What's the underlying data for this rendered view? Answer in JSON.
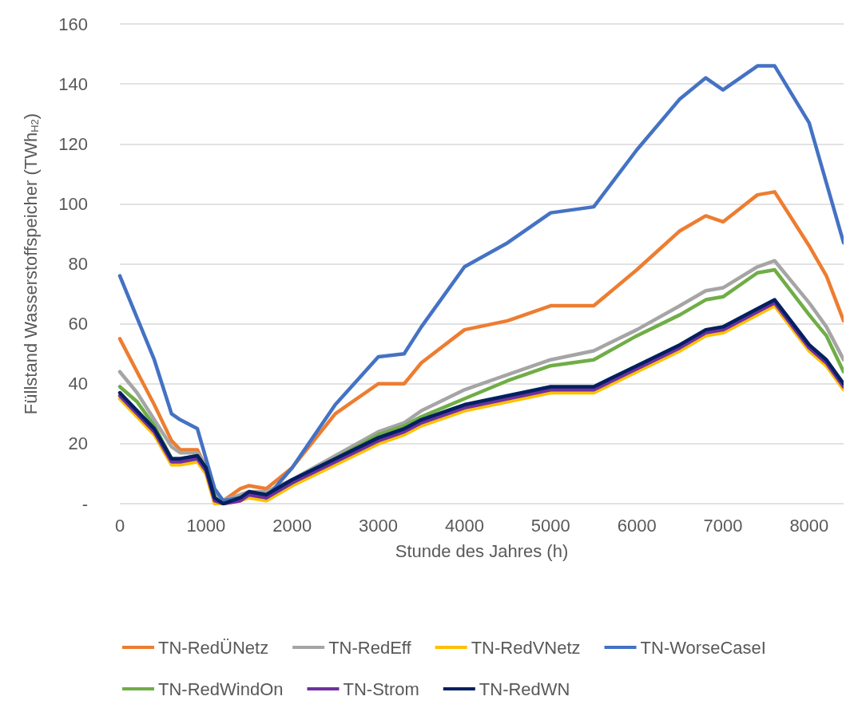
{
  "chart_data": {
    "type": "line",
    "xlabel": "Stunde des Jahres (h)",
    "ylabel": "Füllstand Wasserstoffspeicher (TWh$_{H2}$)",
    "x": [
      0,
      200,
      400,
      600,
      700,
      900,
      1000,
      1100,
      1200,
      1400,
      1500,
      1700,
      2000,
      2500,
      3000,
      3300,
      3500,
      4000,
      4500,
      5000,
      5500,
      6000,
      6500,
      6800,
      7000,
      7400,
      7600,
      8000,
      8200,
      8400
    ],
    "xlim": [
      0,
      8400
    ],
    "xticks": [
      0,
      1000,
      2000,
      3000,
      4000,
      5000,
      6000,
      7000,
      8000
    ],
    "ylim": [
      0,
      160
    ],
    "yticks": [
      {
        "value": 0,
        "label": "-"
      },
      20,
      40,
      60,
      80,
      100,
      120,
      140,
      160
    ],
    "grid": "y",
    "legend": "bottom",
    "marker": "none",
    "line_style": "solid",
    "series": [
      {
        "name": "TN-RedÜNetz",
        "color": "#ed7d31",
        "values": [
          55,
          44,
          33,
          21,
          18,
          18,
          12,
          4,
          1,
          5,
          6,
          5,
          12,
          30,
          40,
          40,
          47,
          58,
          61,
          66,
          66,
          78,
          91,
          96,
          94,
          103,
          104,
          86,
          76,
          61
        ]
      },
      {
        "name": "TN-RedEff",
        "color": "#a5a5a5",
        "values": [
          44,
          37,
          28,
          19,
          17,
          17,
          13,
          4,
          1,
          3,
          4,
          4,
          8,
          16,
          24,
          27,
          31,
          38,
          43,
          48,
          51,
          58,
          66,
          71,
          72,
          79,
          81,
          67,
          59,
          48
        ]
      },
      {
        "name": "TN-RedVNetz",
        "color": "#ffc000",
        "values": [
          35,
          29,
          23,
          13,
          13,
          14,
          10,
          0,
          0,
          1,
          2,
          1,
          6,
          13,
          20,
          23,
          26,
          31,
          34,
          37,
          37,
          44,
          51,
          56,
          57,
          63,
          66,
          51,
          46,
          38
        ]
      },
      {
        "name": "TN-WorseCaseI",
        "color": "#4472c4",
        "values": [
          76,
          62,
          48,
          30,
          28,
          25,
          15,
          5,
          1,
          2,
          4,
          2,
          12,
          33,
          49,
          50,
          59,
          79,
          87,
          97,
          99,
          118,
          135,
          142,
          138,
          146,
          146,
          127,
          107,
          87
        ]
      },
      {
        "name": "TN-RedWindOn",
        "color": "#70ad47",
        "values": [
          39,
          34,
          26,
          15,
          15,
          16,
          12,
          2,
          0,
          2,
          3,
          2,
          7,
          15,
          23,
          26,
          29,
          35,
          41,
          46,
          48,
          56,
          63,
          68,
          69,
          77,
          78,
          63,
          56,
          44
        ]
      },
      {
        "name": "TN-Strom",
        "color": "#7030a0",
        "values": [
          36,
          30,
          24,
          14,
          14,
          15,
          11,
          1,
          0,
          1,
          3,
          2,
          7,
          14,
          21,
          24,
          27,
          32,
          35,
          38,
          38,
          45,
          52,
          57,
          58,
          64,
          67,
          52,
          47,
          39
        ]
      },
      {
        "name": "TN-RedWN",
        "color": "#002060",
        "values": [
          37,
          31,
          25,
          15,
          15,
          16,
          12,
          2,
          0,
          2,
          4,
          3,
          8,
          15,
          22,
          25,
          28,
          33,
          36,
          39,
          39,
          46,
          53,
          58,
          59,
          65,
          68,
          53,
          48,
          40
        ]
      }
    ]
  }
}
